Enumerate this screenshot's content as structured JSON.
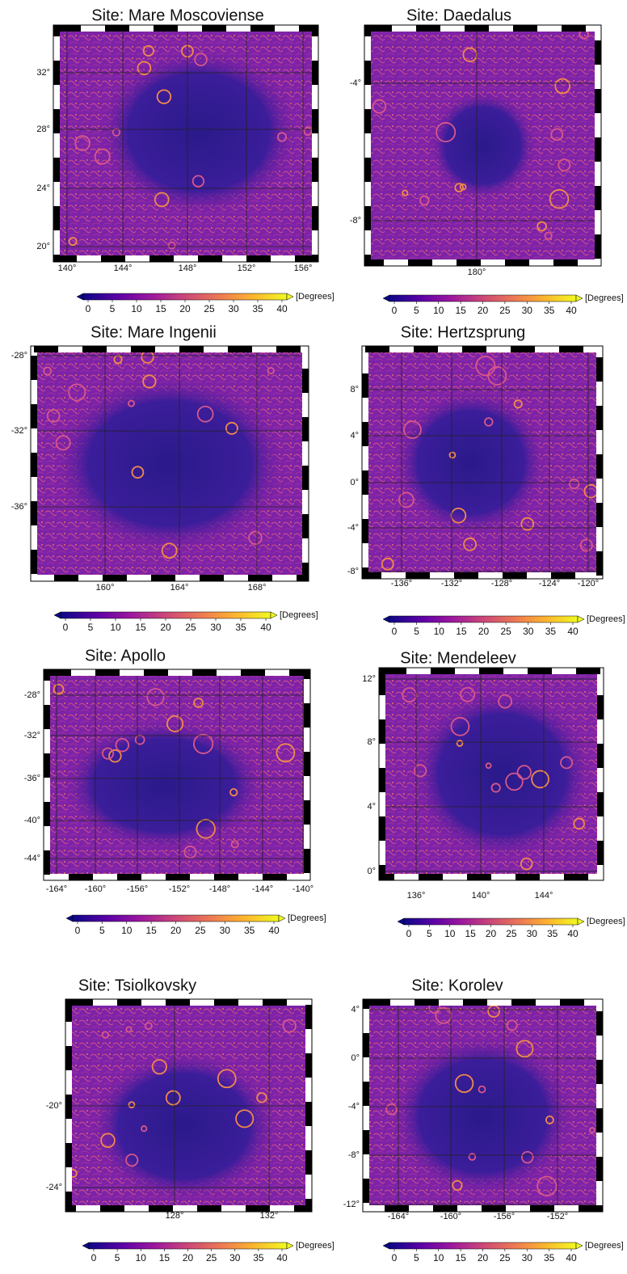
{
  "panels": [
    {
      "title": "Site: Mare Moscoviense",
      "yticks": [
        "32°",
        "28°",
        "24°",
        "20°"
      ],
      "xticks": [
        "140°",
        "144°",
        "148°",
        "152°",
        "156°"
      ],
      "colorbar": {
        "ticks": [
          "0",
          "5",
          "10",
          "15",
          "20",
          "25",
          "30",
          "35",
          "40"
        ],
        "unit": "[Degrees]"
      }
    },
    {
      "title": "Site: Daedalus",
      "yticks": [
        "-4°",
        "-8°"
      ],
      "xticks": [
        "180°"
      ],
      "colorbar": {
        "ticks": [
          "0",
          "5",
          "10",
          "15",
          "20",
          "25",
          "30",
          "35",
          "40"
        ],
        "unit": "[Degrees]"
      }
    },
    {
      "title": "Site: Mare Ingenii",
      "yticks": [
        "-28°",
        "-32°",
        "-36°"
      ],
      "xticks": [
        "160°",
        "164°",
        "168°"
      ],
      "colorbar": {
        "ticks": [
          "0",
          "5",
          "10",
          "15",
          "20",
          "25",
          "30",
          "35",
          "40"
        ],
        "unit": "[Degrees]"
      }
    },
    {
      "title": "Site: Hertzsprung",
      "yticks": [
        "8°",
        "4°",
        "0°",
        "-4°",
        "-8°"
      ],
      "xticks": [
        "-136°",
        "-132°",
        "-128°",
        "-124°",
        "-120°"
      ],
      "colorbar": {
        "ticks": [
          "0",
          "5",
          "10",
          "15",
          "20",
          "25",
          "30",
          "35",
          "40"
        ],
        "unit": "[Degrees]"
      }
    },
    {
      "title": "Site: Apollo",
      "yticks": [
        "-28°",
        "-32°",
        "-36°",
        "-40°",
        "-44°"
      ],
      "xticks": [
        "-164°",
        "-160°",
        "-156°",
        "-152°",
        "-148°",
        "-144°",
        "-140°"
      ],
      "colorbar": {
        "ticks": [
          "0",
          "5",
          "10",
          "15",
          "20",
          "25",
          "30",
          "35",
          "40"
        ],
        "unit": "[Degrees]"
      }
    },
    {
      "title": "Site: Mendeleev",
      "yticks": [
        "12°",
        "8°",
        "4°",
        "0°"
      ],
      "xticks": [
        "136°",
        "140°",
        "144°"
      ],
      "colorbar": {
        "ticks": [
          "0",
          "5",
          "10",
          "15",
          "20",
          "25",
          "30",
          "35",
          "40"
        ],
        "unit": "[Degrees]"
      }
    },
    {
      "title": "Site: Tsiolkovsky",
      "yticks": [
        "-20°",
        "-24°"
      ],
      "xticks": [
        "128°",
        "132°"
      ],
      "colorbar": {
        "ticks": [
          "0",
          "5",
          "10",
          "15",
          "20",
          "25",
          "30",
          "35",
          "40"
        ],
        "unit": "[Degrees]"
      }
    },
    {
      "title": "Site: Korolev",
      "yticks": [
        "4°",
        "0°",
        "-4°",
        "-8°",
        "-12°"
      ],
      "xticks": [
        "-164°",
        "-160°",
        "-156°",
        "-152°"
      ],
      "colorbar": {
        "ticks": [
          "0",
          "5",
          "10",
          "15",
          "20",
          "25",
          "30",
          "35",
          "40"
        ],
        "unit": "[Degrees]"
      }
    }
  ]
}
